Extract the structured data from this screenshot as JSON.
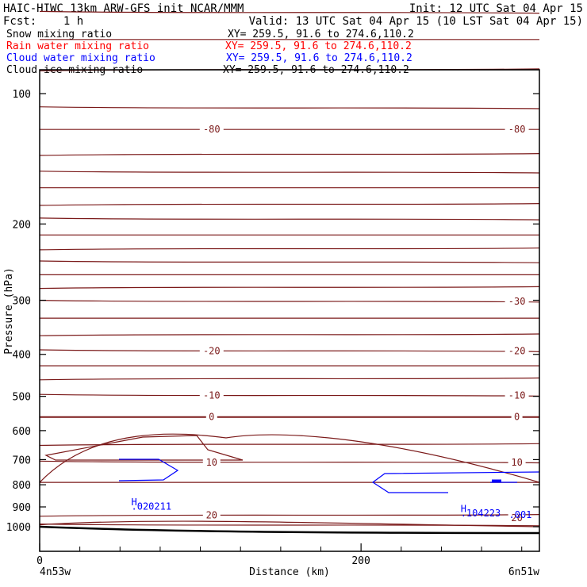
{
  "header": {
    "title_left": "HAIC-HIWC 13km ARW-GFS init   NCAR/MMM",
    "init": "Init: 12 UTC Sat 04 Apr 15",
    "fcst": "Fcst:    1 h",
    "valid": "Valid: 13 UTC Sat 04 Apr 15 (10 LST Sat 04 Apr 15)"
  },
  "legend": [
    {
      "label": "Snow mixing ratio",
      "xy": "XY= 259.5, 91.6 to 274.6,110.2",
      "color": "#000000"
    },
    {
      "label": "Rain water mixing ratio",
      "xy": "XY= 259.5, 91.6 to 274.6,110.2",
      "color": "#ff0000"
    },
    {
      "label": "Cloud water mixing ratio",
      "xy": "XY= 259.5, 91.6 to 274.6,110.2",
      "color": "#0000ff"
    },
    {
      "label": "Cloud ice mixing ratio",
      "xy": "XY= 259.5, 91.6 to 274.6,110.2",
      "color": "#000000"
    }
  ],
  "chart_data": {
    "type": "cross-section",
    "ylabel": "Pressure (hPa)",
    "xlabel": "Distance (km)",
    "x_tick_labels": [
      "0",
      "200"
    ],
    "x_ticks_major": [
      0,
      200
    ],
    "x_ticks_minor": [
      25,
      50,
      75,
      100,
      125,
      150,
      175,
      225,
      250,
      275,
      300
    ],
    "y_ticks": [
      100,
      200,
      300,
      400,
      500,
      600,
      700,
      800,
      900,
      1000
    ],
    "y_tick_labels": [
      "100",
      "200",
      "300",
      "400",
      "500",
      "600",
      "700",
      "800",
      "900",
      "1000"
    ],
    "ylim": [
      1050,
      50
    ],
    "xlim": [
      0,
      311
    ],
    "y_scale": "log",
    "left_endpoint": "4n53w",
    "right_endpoint": "6n51w",
    "colors": {
      "isotherm": "#7b1a1a",
      "cloud_water": "#0000ff",
      "terrain": "#000000"
    },
    "isotherm_pressures": [
      65,
      75,
      88,
      108,
      121,
      138,
      152,
      165,
      180,
      195,
      212,
      228,
      245,
      262,
      280,
      302,
      330,
      360,
      393,
      425,
      455,
      498,
      558,
      645,
      710,
      790,
      940,
      992
    ],
    "isotherm_labels": [
      {
        "text": "-80",
        "x": 107,
        "p": 121
      },
      {
        "text": "-80",
        "x": 297,
        "p": 121
      },
      {
        "text": "-30",
        "x": 297,
        "p": 302
      },
      {
        "text": "-20",
        "x": 107,
        "p": 393
      },
      {
        "text": "-20",
        "x": 297,
        "p": 393
      },
      {
        "text": "-10",
        "x": 107,
        "p": 498
      },
      {
        "text": "-10",
        "x": 297,
        "p": 498
      },
      {
        "text": "0",
        "x": 107,
        "p": 558
      },
      {
        "text": "0",
        "x": 297,
        "p": 558
      },
      {
        "text": "10",
        "x": 107,
        "p": 710
      },
      {
        "text": "10",
        "x": 297,
        "p": 710
      },
      {
        "text": "20",
        "x": 107,
        "p": 940
      },
      {
        "text": "20",
        "x": 297,
        "p": 955
      }
    ],
    "cloud_water_labels": [
      {
        "text": "H",
        "x": 57,
        "p": 878
      },
      {
        "text": ".020211",
        "x": 57,
        "p": 898
      },
      {
        "text": "H",
        "x": 262,
        "p": 910
      },
      {
        "text": ".104223",
        "x": 262,
        "p": 930
      },
      {
        "text": ".001",
        "x": 292,
        "p": 938
      }
    ]
  }
}
